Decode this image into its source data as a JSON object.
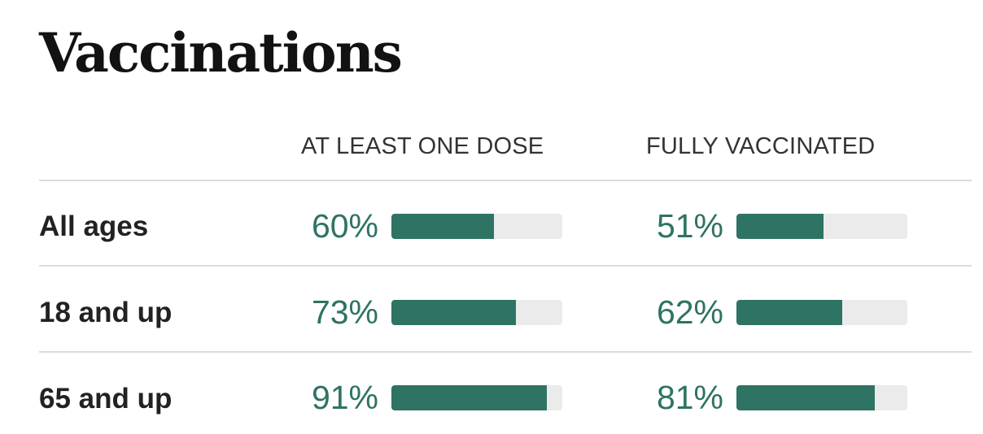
{
  "title": "Vaccinations",
  "colors": {
    "bar_fill": "#2e7363",
    "bar_track": "#ebebeb",
    "percent_text": "#2e7363"
  },
  "chart_data": {
    "type": "bar",
    "title": "Vaccinations",
    "columns": [
      "AT LEAST ONE DOSE",
      "FULLY VACCINATED"
    ],
    "categories": [
      "All ages",
      "18 and up",
      "65 and up"
    ],
    "series": [
      {
        "name": "AT LEAST ONE DOSE",
        "values": [
          60,
          73,
          91
        ],
        "labels": [
          "60%",
          "73%",
          "91%"
        ]
      },
      {
        "name": "FULLY VACCINATED",
        "values": [
          51,
          62,
          81
        ],
        "labels": [
          "51%",
          "62%",
          "81%"
        ]
      }
    ],
    "ylim": [
      0,
      100
    ]
  }
}
